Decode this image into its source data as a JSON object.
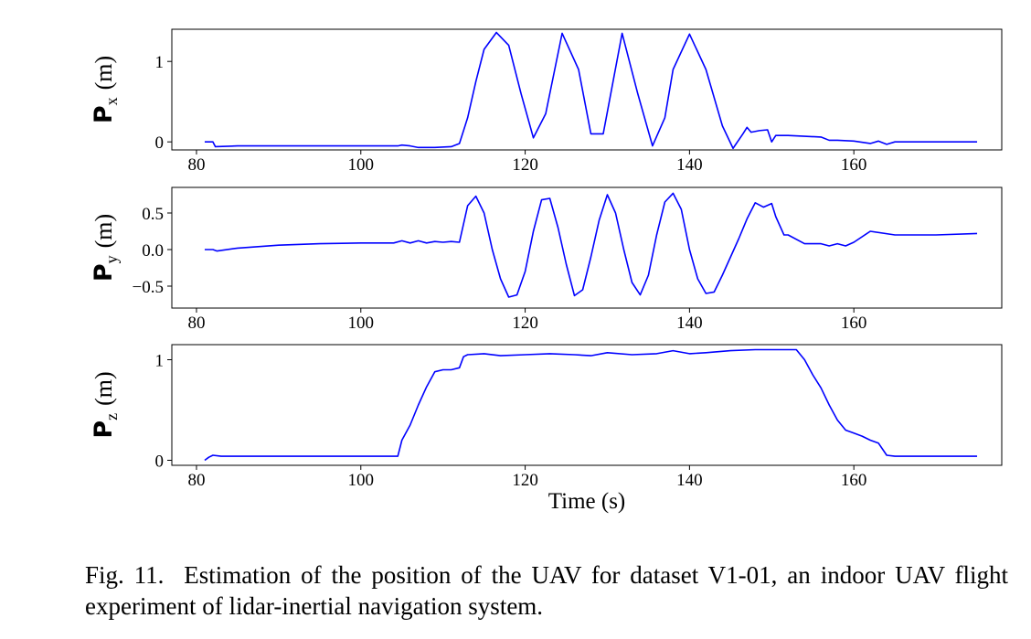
{
  "chart_data": [
    {
      "type": "line",
      "ylabel": {
        "main": "P",
        "sub": "x",
        "unit": "(m)"
      },
      "xlabel": "",
      "xlim": [
        77,
        178
      ],
      "ylim": [
        -0.1,
        1.4
      ],
      "xticks": [
        80,
        100,
        120,
        140,
        160
      ],
      "yticks": [
        0,
        1
      ],
      "ytick_labels": [
        "0",
        "1"
      ],
      "grid": false,
      "series": [
        {
          "color": "#0000ff",
          "x": [
            81,
            82,
            82.3,
            85,
            90,
            95,
            100,
            104.5,
            105,
            106,
            107,
            109,
            111,
            112,
            113,
            114,
            115,
            116.5,
            118,
            119.5,
            121,
            122.5,
            124.5,
            126.5,
            128,
            129.5,
            131.8,
            133.7,
            135.5,
            137,
            138,
            140,
            142,
            144,
            145.3,
            146.5,
            147,
            147.5,
            148.5,
            149.5,
            150,
            150.5,
            152,
            154,
            156,
            157,
            158,
            160,
            162,
            163,
            164,
            165,
            168,
            172,
            175
          ],
          "y": [
            0.0,
            0.0,
            -0.06,
            -0.05,
            -0.05,
            -0.05,
            -0.05,
            -0.05,
            -0.04,
            -0.05,
            -0.07,
            -0.07,
            -0.06,
            -0.02,
            0.3,
            0.75,
            1.15,
            1.36,
            1.2,
            0.6,
            0.05,
            0.35,
            1.35,
            0.9,
            0.1,
            0.1,
            1.35,
            0.6,
            -0.05,
            0.3,
            0.9,
            1.34,
            0.9,
            0.2,
            -0.08,
            0.1,
            0.18,
            0.12,
            0.14,
            0.15,
            0.0,
            0.08,
            0.08,
            0.07,
            0.06,
            0.02,
            0.02,
            0.01,
            -0.02,
            0.01,
            -0.03,
            0.0,
            0.0,
            0.0,
            0.0
          ]
        }
      ]
    },
    {
      "type": "line",
      "ylabel": {
        "main": "P",
        "sub": "y",
        "unit": "(m)"
      },
      "xlabel": "",
      "xlim": [
        77,
        178
      ],
      "ylim": [
        -0.8,
        0.85
      ],
      "xticks": [
        80,
        100,
        120,
        140,
        160
      ],
      "yticks": [
        -0.5,
        0.0,
        0.5
      ],
      "ytick_labels": [
        "−0.5",
        "0.0",
        "0.5"
      ],
      "grid": false,
      "series": [
        {
          "color": "#0000ff",
          "x": [
            81,
            82,
            82.5,
            85,
            90,
            95,
            100,
            104,
            105,
            106,
            107,
            108,
            109,
            110,
            111,
            112,
            112.5,
            113,
            114,
            115,
            116,
            117,
            118,
            119,
            120,
            121,
            122,
            123,
            124,
            125,
            126,
            127,
            128,
            129,
            130,
            131,
            132,
            133,
            134,
            135,
            136,
            137,
            138,
            139,
            140,
            141,
            142,
            143,
            144,
            145,
            146,
            147,
            148,
            149,
            150,
            150.5,
            151.5,
            152,
            154,
            156,
            157,
            158,
            159,
            160,
            162,
            165,
            170,
            175
          ],
          "y": [
            0.0,
            0.0,
            -0.02,
            0.02,
            0.06,
            0.08,
            0.09,
            0.09,
            0.12,
            0.09,
            0.12,
            0.09,
            0.11,
            0.1,
            0.11,
            0.1,
            0.35,
            0.6,
            0.73,
            0.5,
            0.0,
            -0.4,
            -0.65,
            -0.62,
            -0.3,
            0.25,
            0.68,
            0.7,
            0.3,
            -0.2,
            -0.63,
            -0.55,
            -0.1,
            0.4,
            0.75,
            0.5,
            0.0,
            -0.45,
            -0.62,
            -0.35,
            0.2,
            0.65,
            0.77,
            0.55,
            0.0,
            -0.4,
            -0.6,
            -0.58,
            -0.35,
            -0.1,
            0.15,
            0.42,
            0.64,
            0.58,
            0.63,
            0.45,
            0.2,
            0.2,
            0.08,
            0.08,
            0.05,
            0.08,
            0.05,
            0.1,
            0.25,
            0.2,
            0.2,
            0.22
          ]
        }
      ]
    },
    {
      "type": "line",
      "ylabel": {
        "main": "P",
        "sub": "z",
        "unit": "(m)"
      },
      "xlabel": "Time (s)",
      "xlim": [
        77,
        178
      ],
      "ylim": [
        -0.05,
        1.15
      ],
      "xticks": [
        80,
        100,
        120,
        140,
        160
      ],
      "yticks": [
        0,
        1
      ],
      "ytick_labels": [
        "0",
        "1"
      ],
      "grid": false,
      "series": [
        {
          "color": "#0000ff",
          "x": [
            81,
            81.5,
            82,
            83,
            90,
            100,
            104.5,
            105,
            106,
            107,
            108,
            109,
            110,
            111,
            112,
            112.5,
            113,
            115,
            117,
            120,
            123,
            126,
            128,
            130,
            133,
            136,
            138,
            140,
            142,
            145,
            148,
            150,
            151,
            153,
            154,
            155,
            156,
            157,
            158,
            159,
            160,
            161,
            162,
            163,
            164,
            165,
            170,
            175
          ],
          "y": [
            0.0,
            0.03,
            0.05,
            0.04,
            0.04,
            0.04,
            0.04,
            0.2,
            0.35,
            0.55,
            0.73,
            0.88,
            0.9,
            0.9,
            0.92,
            1.03,
            1.05,
            1.06,
            1.04,
            1.05,
            1.06,
            1.05,
            1.04,
            1.07,
            1.05,
            1.06,
            1.09,
            1.06,
            1.07,
            1.09,
            1.1,
            1.1,
            1.1,
            1.1,
            1.0,
            0.85,
            0.72,
            0.55,
            0.4,
            0.3,
            0.27,
            0.24,
            0.2,
            0.17,
            0.05,
            0.04,
            0.04,
            0.04
          ]
        }
      ]
    }
  ],
  "caption": {
    "text": "Fig. 11.  Estimation of the position of the UAV for dataset V1-01, an indoor UAV flight experiment of lidar-inertial navigation system."
  }
}
